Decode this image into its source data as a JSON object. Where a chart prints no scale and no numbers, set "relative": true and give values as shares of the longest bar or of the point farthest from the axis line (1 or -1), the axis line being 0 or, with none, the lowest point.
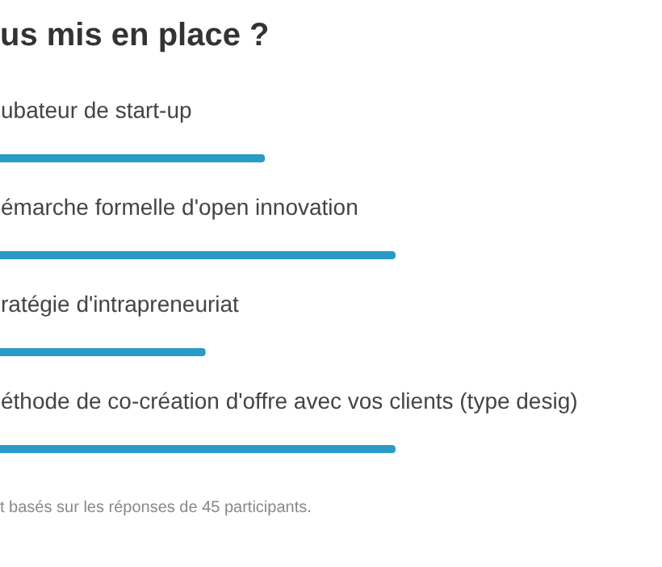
{
  "chart_data": {
    "type": "bar",
    "orientation": "horizontal",
    "relative": true,
    "title": "us mis en place ?",
    "categories": [
      "ubateur de start-up",
      "émarche formelle d'open innovation",
      "ratégie d'intrapreneuriat",
      "éthode de co-création d'offre avec vos clients (type desig)"
    ],
    "values": [
      0.67,
      1,
      0.52,
      1
    ],
    "color": "#2a9bc7",
    "annotations": [
      "t basés sur les réponses de 45 participants."
    ]
  }
}
